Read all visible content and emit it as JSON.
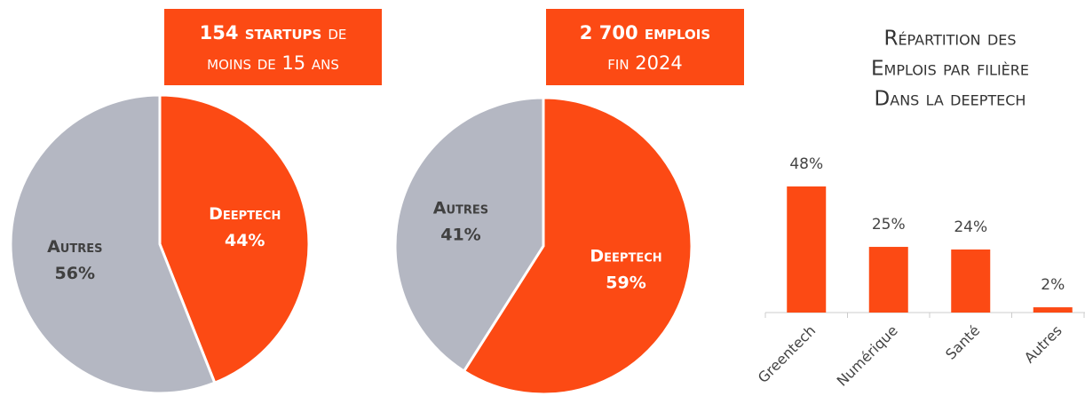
{
  "chart_data": [
    {
      "type": "pie",
      "title_parts": [
        "154 startups",
        "de",
        "moins de 15 ans"
      ],
      "categories": [
        "Deeptech",
        "Autres"
      ],
      "values": [
        44,
        56
      ],
      "value_labels": [
        "44%",
        "56%"
      ],
      "colors": [
        "#fc4a14",
        "#b4b7c2"
      ]
    },
    {
      "type": "pie",
      "title_parts": [
        "2 700 emplois",
        "fin 2024"
      ],
      "categories": [
        "Deeptech",
        "Autres"
      ],
      "values": [
        59,
        41
      ],
      "value_labels": [
        "59%",
        "41%"
      ],
      "colors": [
        "#fc4a14",
        "#b4b7c2"
      ]
    },
    {
      "type": "bar",
      "title_lines": [
        "Répartition des",
        "Emplois par filière",
        "Dans la deeptech"
      ],
      "categories": [
        "Greentech",
        "Numérique",
        "Santé",
        "Autres"
      ],
      "values": [
        48,
        25,
        24,
        2
      ],
      "value_labels": [
        "48%",
        "25%",
        "24%",
        "2%"
      ],
      "color": "#fc4a14"
    }
  ]
}
